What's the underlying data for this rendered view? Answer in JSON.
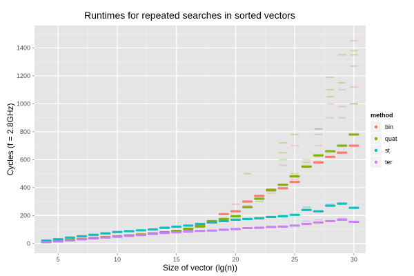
{
  "chart_data": {
    "type": "scatter",
    "title": "Runtimes for repeated searches in sorted vectors",
    "xlabel": "Size of vector (lg(n))",
    "ylabel": "Cycles (f = 2.8GHz)",
    "xlim": [
      3,
      31
    ],
    "ylim": [
      -70,
      1560
    ],
    "xticks": [
      5,
      10,
      15,
      20,
      25,
      30
    ],
    "yticks": [
      0,
      200,
      400,
      600,
      800,
      1000,
      1200,
      1400
    ],
    "grid": true,
    "background": "#e5e5e5",
    "legend": {
      "title": "method",
      "position": "right"
    },
    "x": [
      4,
      5,
      6,
      7,
      8,
      9,
      10,
      11,
      12,
      13,
      14,
      15,
      16,
      17,
      18,
      19,
      20,
      21,
      22,
      23,
      24,
      25,
      26,
      27,
      28,
      29,
      30
    ],
    "series": [
      {
        "name": "bin",
        "color": "#f8766d",
        "values": [
          10,
          20,
          25,
          32,
          40,
          46,
          52,
          58,
          65,
          72,
          80,
          90,
          100,
          120,
          150,
          210,
          230,
          300,
          340,
          385,
          395,
          440,
          550,
          580,
          620,
          650,
          700
        ]
      },
      {
        "name": "quat",
        "color": "#7cae00",
        "values": [
          10,
          16,
          25,
          32,
          38,
          44,
          50,
          56,
          62,
          70,
          78,
          88,
          105,
          125,
          160,
          175,
          195,
          260,
          320,
          380,
          420,
          480,
          550,
          630,
          660,
          700,
          780
        ]
      },
      {
        "name": "st",
        "color": "#00bfc4",
        "values": [
          20,
          30,
          42,
          52,
          62,
          72,
          82,
          88,
          94,
          100,
          112,
          120,
          128,
          140,
          150,
          160,
          170,
          175,
          180,
          190,
          195,
          205,
          240,
          230,
          270,
          285,
          255
        ]
      },
      {
        "name": "ter",
        "color": "#c77cff",
        "values": [
          10,
          15,
          22,
          30,
          36,
          42,
          48,
          54,
          60,
          68,
          75,
          80,
          85,
          90,
          92,
          98,
          103,
          110,
          112,
          118,
          120,
          128,
          140,
          150,
          160,
          170,
          155
        ]
      }
    ],
    "faint_outliers": [
      {
        "series": "bin",
        "x": 20,
        "y": 280
      },
      {
        "series": "bin",
        "x": 21,
        "y": 270
      },
      {
        "series": "bin",
        "x": 23,
        "y": 360
      },
      {
        "series": "bin",
        "x": 24,
        "y": 560
      },
      {
        "series": "bin",
        "x": 25,
        "y": 700
      },
      {
        "series": "bin",
        "x": 25,
        "y": 460
      },
      {
        "series": "bin",
        "x": 26,
        "y": 600
      },
      {
        "series": "bin",
        "x": 27,
        "y": 700
      },
      {
        "series": "bin",
        "x": 27,
        "y": 820
      },
      {
        "series": "bin",
        "x": 28,
        "y": 900
      },
      {
        "series": "bin",
        "x": 28,
        "y": 1000
      },
      {
        "series": "bin",
        "x": 29,
        "y": 1100
      },
      {
        "series": "bin",
        "x": 29,
        "y": 980
      },
      {
        "series": "bin",
        "x": 30,
        "y": 1000
      },
      {
        "series": "bin",
        "x": 30,
        "y": 1120
      },
      {
        "series": "bin",
        "x": 30,
        "y": 1450
      },
      {
        "series": "quat",
        "x": 21,
        "y": 500
      },
      {
        "series": "quat",
        "x": 22,
        "y": 300
      },
      {
        "series": "quat",
        "x": 24,
        "y": 600
      },
      {
        "series": "quat",
        "x": 24,
        "y": 650
      },
      {
        "series": "quat",
        "x": 24,
        "y": 720
      },
      {
        "series": "quat",
        "x": 25,
        "y": 780
      },
      {
        "series": "quat",
        "x": 25,
        "y": 500
      },
      {
        "series": "quat",
        "x": 26,
        "y": 580
      },
      {
        "series": "quat",
        "x": 27,
        "y": 820
      },
      {
        "series": "quat",
        "x": 27,
        "y": 780
      },
      {
        "series": "quat",
        "x": 28,
        "y": 1050
      },
      {
        "series": "quat",
        "x": 28,
        "y": 1190
      },
      {
        "series": "quat",
        "x": 28,
        "y": 1100
      },
      {
        "series": "quat",
        "x": 29,
        "y": 1350
      },
      {
        "series": "quat",
        "x": 29,
        "y": 1150
      },
      {
        "series": "quat",
        "x": 29,
        "y": 900
      },
      {
        "series": "quat",
        "x": 30,
        "y": 1270
      },
      {
        "series": "quat",
        "x": 30,
        "y": 1380
      },
      {
        "series": "quat",
        "x": 30,
        "y": 1350
      },
      {
        "series": "quat",
        "x": 30,
        "y": 1000
      },
      {
        "series": "st",
        "x": 26,
        "y": 260
      },
      {
        "series": "st",
        "x": 28,
        "y": 280
      },
      {
        "series": "ter",
        "x": 26,
        "y": 160
      },
      {
        "series": "ter",
        "x": 27,
        "y": 170
      },
      {
        "series": "ter",
        "x": 29,
        "y": 180
      }
    ]
  }
}
